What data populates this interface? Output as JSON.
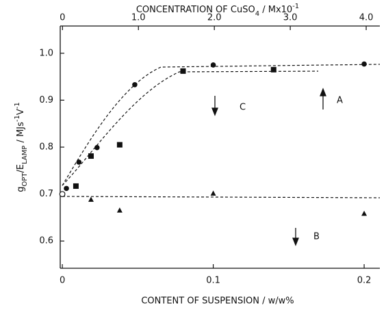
{
  "chart_data": {
    "type": "scatter",
    "x_label": "CONTENT OF SUSPENSION / w/w%",
    "x2_label": [
      {
        "text": "CONCENTRATION OF CuSO"
      },
      {
        "text": "4",
        "shift": "sub"
      },
      {
        "text": " / Mx10"
      },
      {
        "text": "-1",
        "shift": "super"
      }
    ],
    "y_label": [
      {
        "text": "g"
      },
      {
        "text": "OPT",
        "shift": "sub"
      },
      {
        "text": "/E"
      },
      {
        "text": "LAMP",
        "shift": "sub"
      },
      {
        "text": " / MJs"
      },
      {
        "text": "-1",
        "shift": "super"
      },
      {
        "text": "V"
      },
      {
        "text": "-1",
        "shift": "super"
      }
    ],
    "xlim": [
      -0.0014,
      0.2104
    ],
    "xticks": [
      0,
      0.1,
      0.2
    ],
    "x2lim": [
      -0.03,
      4.18
    ],
    "x2ticks": [
      0,
      {
        "value": 1,
        "label": "1.0"
      },
      {
        "value": 2,
        "label": "2.0"
      },
      {
        "value": 3,
        "label": "3.0"
      },
      {
        "value": 4,
        "label": "4.0"
      }
    ],
    "ylim": [
      0.542,
      1.058
    ],
    "yticks": [
      0.6,
      0.7,
      0.8,
      0.9,
      {
        "value": 1,
        "label": "1.0"
      }
    ],
    "series": [
      {
        "name": "A",
        "marker": "circle",
        "color": "#111111",
        "x": [
          0.0027,
          0.011,
          0.023,
          0.048,
          0.1,
          0.2
        ],
        "values": [
          0.712,
          0.768,
          0.799,
          0.933,
          0.975,
          0.977
        ]
      },
      {
        "name": "C",
        "marker": "square",
        "color": "#111111",
        "x": [
          0.009,
          0.019,
          0.038,
          0.08,
          0.14
        ],
        "values": [
          0.717,
          0.781,
          0.805,
          0.962,
          0.965
        ]
      },
      {
        "name": "B",
        "marker": "triangle",
        "color": "#111111",
        "x": [
          0.019,
          0.038,
          0.1,
          0.2
        ],
        "values": [
          0.688,
          0.665,
          0.701,
          0.658
        ]
      },
      {
        "marker": "open-circle",
        "color": "#111111",
        "x": [
          0
        ],
        "values": [
          0.7
        ]
      }
    ]
  }
}
